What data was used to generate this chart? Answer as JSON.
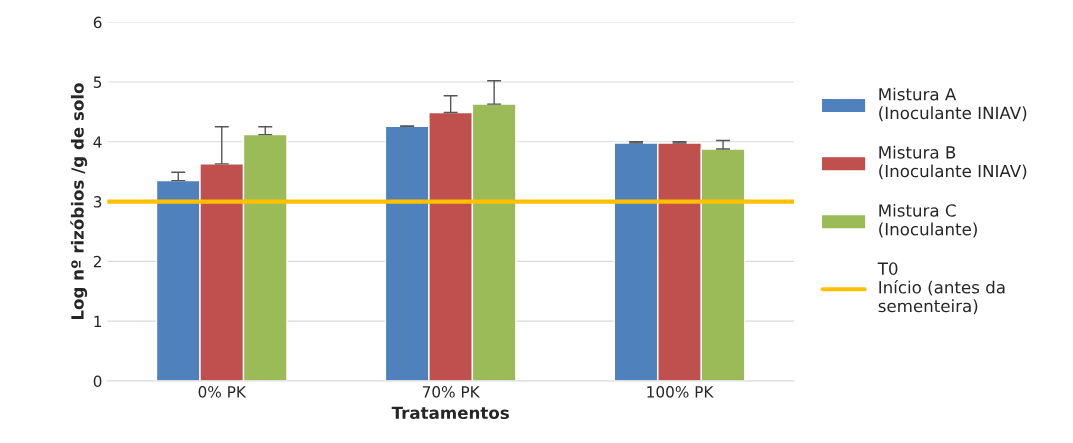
{
  "chart_data": {
    "type": "bar",
    "xlabel": "Tratamentos",
    "ylabel": "Log nº rizóbios /g de solo",
    "categories": [
      "0% PK",
      "70% PK",
      "100% PK"
    ],
    "series": [
      {
        "name": "Mistura A\n(Inoculante INIAV)",
        "color": "#4f81bd",
        "values": [
          3.35,
          4.26,
          3.98
        ],
        "errors": [
          [
            3.35,
            3.49
          ],
          null,
          [
            3.98,
            4.0
          ]
        ]
      },
      {
        "name": "Mistura B\n(Inoculante INIAV)",
        "color": "#c0504d",
        "values": [
          3.63,
          4.49,
          3.98
        ],
        "errors": [
          [
            3.63,
            4.25
          ],
          [
            4.49,
            4.77
          ],
          [
            3.98,
            4.0
          ]
        ]
      },
      {
        "name": "Mistura C\n(Inoculante)",
        "color": "#9bbb59",
        "values": [
          4.12,
          4.63,
          3.88
        ],
        "errors": [
          [
            4.12,
            4.25
          ],
          [
            4.63,
            5.02
          ],
          [
            3.88,
            4.02
          ]
        ]
      }
    ],
    "ref_lines": [
      {
        "axis": "y",
        "value": 3,
        "label": "T0\nInício (antes da\nsementeira)",
        "color": "#ffc000"
      }
    ],
    "ylim": [
      0,
      6
    ],
    "yticks": [
      0,
      1,
      2,
      3,
      4,
      5,
      6
    ],
    "grid": "y",
    "legend": "right"
  }
}
